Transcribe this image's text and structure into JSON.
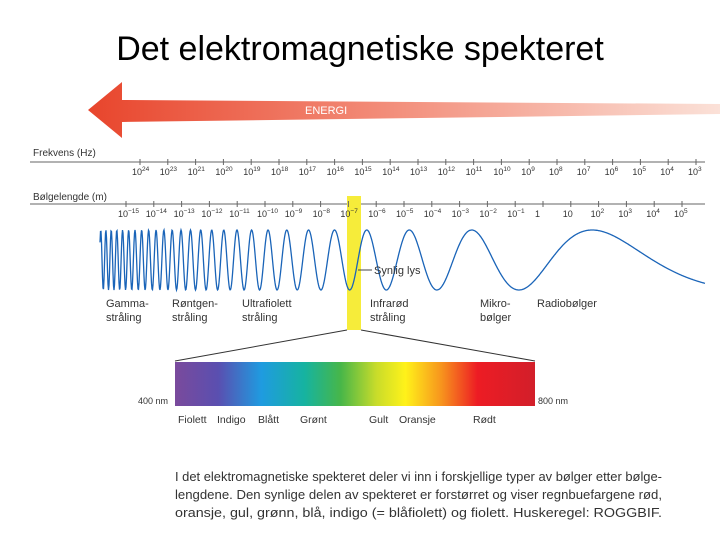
{
  "title": "Det elektromagnetiske spekteret",
  "energy_label": "ENERGI",
  "frequency": {
    "name": "Frekvens (Hz)",
    "ticks": [
      {
        "base": "10",
        "exp": "24"
      },
      {
        "base": "10",
        "exp": "23"
      },
      {
        "base": "10",
        "exp": "21"
      },
      {
        "base": "10",
        "exp": "20"
      },
      {
        "base": "10",
        "exp": "19"
      },
      {
        "base": "10",
        "exp": "18"
      },
      {
        "base": "10",
        "exp": "17"
      },
      {
        "base": "10",
        "exp": "16"
      },
      {
        "base": "10",
        "exp": "15"
      },
      {
        "base": "10",
        "exp": "14"
      },
      {
        "base": "10",
        "exp": "13"
      },
      {
        "base": "10",
        "exp": "12"
      },
      {
        "base": "10",
        "exp": "11"
      },
      {
        "base": "10",
        "exp": "10"
      },
      {
        "base": "10",
        "exp": "9"
      },
      {
        "base": "10",
        "exp": "8"
      },
      {
        "base": "10",
        "exp": "7"
      },
      {
        "base": "10",
        "exp": "6"
      },
      {
        "base": "10",
        "exp": "5"
      },
      {
        "base": "10",
        "exp": "4"
      },
      {
        "base": "10",
        "exp": "3"
      }
    ]
  },
  "wavelength": {
    "name": "Bølgelengde (m)",
    "ticks": [
      {
        "base": "10",
        "exp": "−15"
      },
      {
        "base": "10",
        "exp": "−14"
      },
      {
        "base": "10",
        "exp": "−13"
      },
      {
        "base": "10",
        "exp": "−12"
      },
      {
        "base": "10",
        "exp": "−11"
      },
      {
        "base": "10",
        "exp": "−10"
      },
      {
        "base": "10",
        "exp": "−9"
      },
      {
        "base": "10",
        "exp": "−8"
      },
      {
        "base": "10",
        "exp": "−7"
      },
      {
        "base": "10",
        "exp": "−6"
      },
      {
        "base": "10",
        "exp": "−5"
      },
      {
        "base": "10",
        "exp": "−4"
      },
      {
        "base": "10",
        "exp": "−3"
      },
      {
        "base": "10",
        "exp": "−2"
      },
      {
        "base": "10",
        "exp": "−1"
      },
      {
        "base": "1"
      },
      {
        "base": "10"
      },
      {
        "base": "10",
        "exp": "2"
      },
      {
        "base": "10",
        "exp": "3"
      },
      {
        "base": "10",
        "exp": "4"
      },
      {
        "base": "10",
        "exp": "5"
      }
    ]
  },
  "visible_light_label": "Synlig lys",
  "regions": [
    {
      "lines": [
        "Gamma-",
        "stråling"
      ]
    },
    {
      "lines": [
        "Røntgen-",
        "stråling"
      ]
    },
    {
      "lines": [
        "Ultrafiolett",
        "stråling"
      ]
    },
    {
      "lines": [
        "Infrarød",
        "stråling"
      ]
    },
    {
      "lines": [
        "Mikro-",
        "bølger"
      ]
    },
    {
      "lines": [
        "Radiobølger"
      ]
    }
  ],
  "spectrum": {
    "left_label": "400 nm",
    "right_label": "800 nm",
    "colors": [
      "Fiolett",
      "Indigo",
      "Blått",
      "Grønt",
      "Gult",
      "Oransje",
      "Rødt"
    ]
  },
  "caption": [
    "I det elektromagnetiske spekteret deler vi inn i forskjellige typer av bølger etter bølge-",
    "lengdene. Den synlige delen av spekteret er forstørret og viser regnbuefargene rød,",
    "oransje, gul, grønn, blå, indigo (= blåfiolett) og fiolett. Huskeregel: ROGGBIF."
  ]
}
